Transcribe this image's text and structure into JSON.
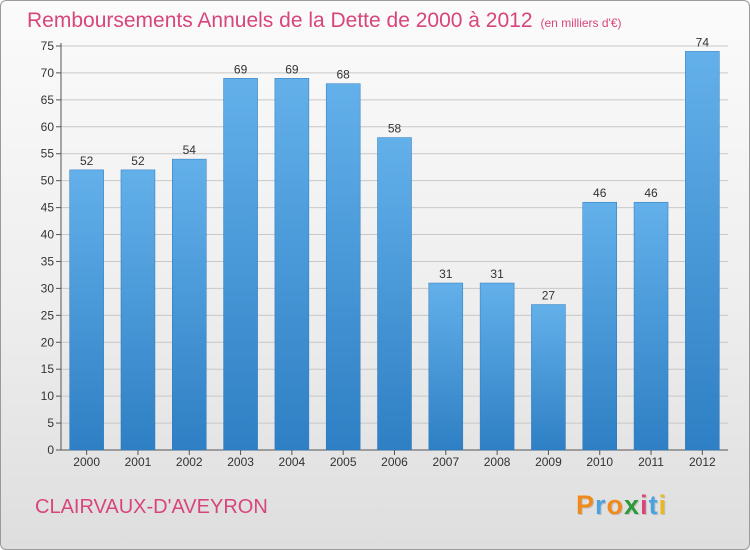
{
  "header": {
    "title": "Remboursements Annuels de la Dette de 2000 à 2012",
    "subtitle": "(en milliers d'€)"
  },
  "footer": {
    "city": "CLAIRVAUX-D'AVEYRON",
    "logo_text": "Proxiti",
    "logo_colors": [
      "#f08a1c",
      "#4aa3df",
      "#f08a1c",
      "#2e9a3c",
      "#d8457c",
      "#4aa3df",
      "#e8b820"
    ]
  },
  "colors": {
    "bar_light": "#63b0ea",
    "bar_dark": "#2e7fc4",
    "grid": "#c8c8c8",
    "text": "#333333",
    "accent": "#d8457c"
  },
  "chart_data": {
    "type": "bar",
    "categories": [
      "2000",
      "2001",
      "2002",
      "2003",
      "2004",
      "2005",
      "2006",
      "2007",
      "2008",
      "2009",
      "2010",
      "2011",
      "2012"
    ],
    "values": [
      52,
      52,
      54,
      69,
      69,
      68,
      58,
      31,
      31,
      27,
      46,
      46,
      74
    ],
    "title": "Remboursements Annuels de la Dette de 2000 à 2012",
    "subtitle": "(en milliers d'€)",
    "ylim": [
      0,
      75
    ],
    "yticks": [
      0,
      5,
      10,
      15,
      20,
      25,
      30,
      35,
      40,
      45,
      50,
      55,
      60,
      65,
      70,
      75
    ],
    "grid": true,
    "data_labels": true
  }
}
